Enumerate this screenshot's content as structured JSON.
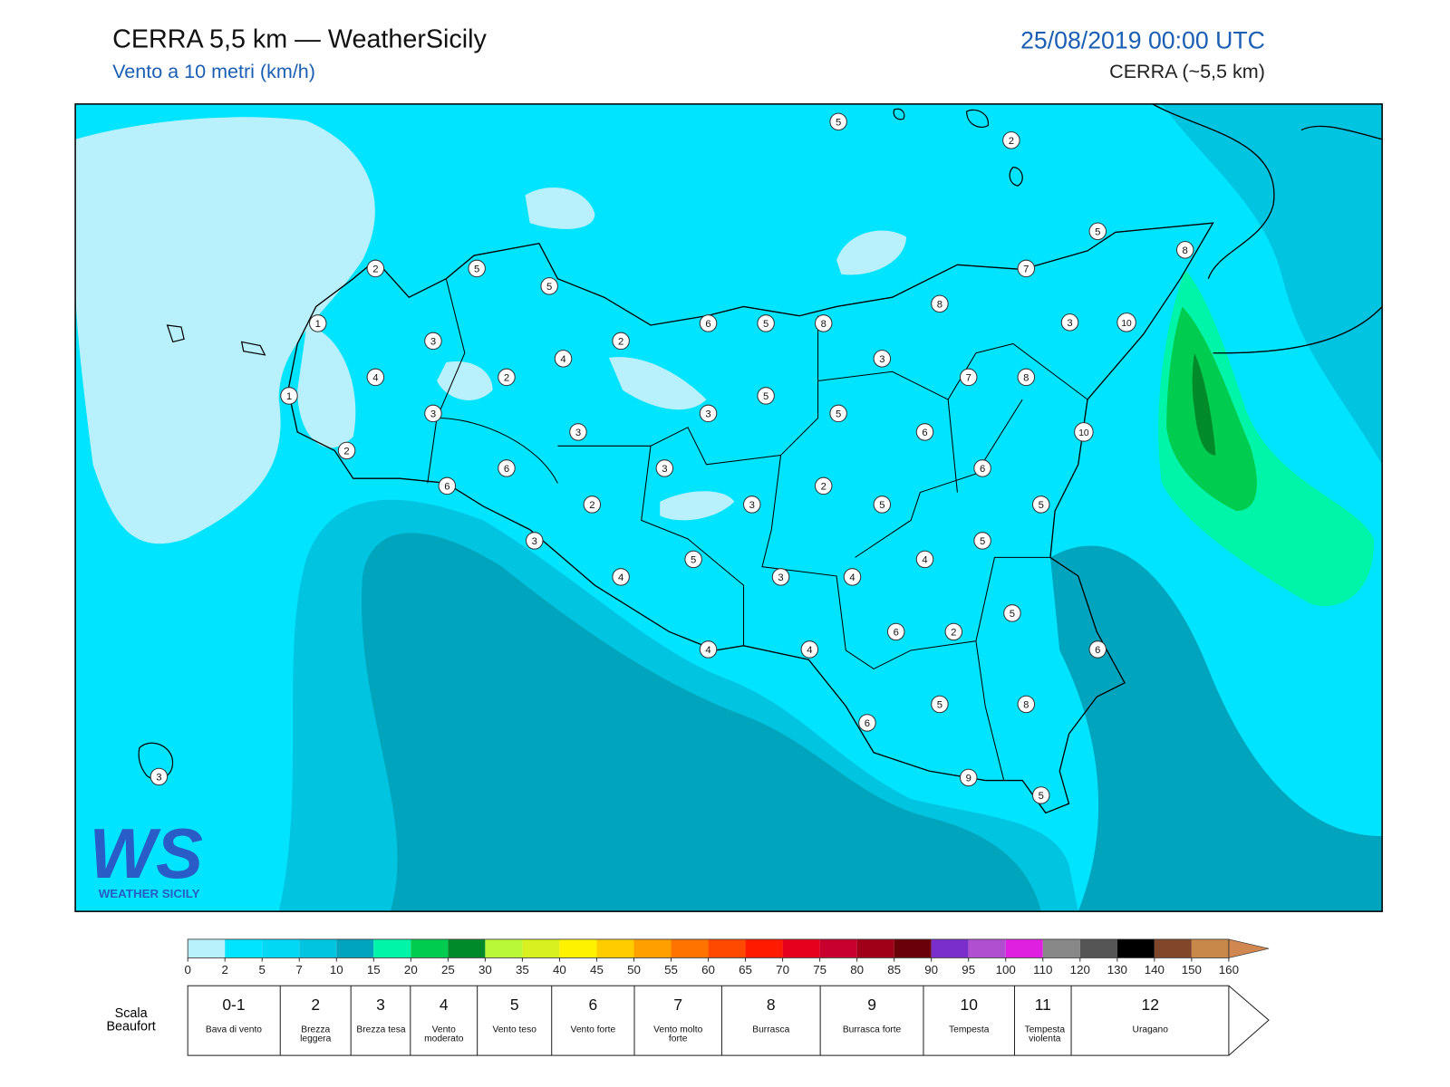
{
  "header": {
    "title": "CERRA 5,5 km — WeatherSicily",
    "subtitle": "Vento a 10 metri (km/h)",
    "datetime": "25/08/2019 00:00 UTC",
    "model": "CERRA (~5,5 km)"
  },
  "map": {
    "stations": [
      5,
      2,
      5,
      8,
      2,
      5,
      5,
      7,
      8,
      1,
      6,
      5,
      8,
      3,
      10,
      3,
      2,
      4,
      3,
      4,
      2,
      7,
      8,
      1,
      5,
      3,
      3,
      5,
      3,
      6,
      10,
      2,
      6,
      3,
      6,
      6,
      2,
      2,
      3,
      5,
      5,
      3,
      5,
      5,
      4,
      4,
      3,
      4,
      5,
      6,
      2,
      4,
      4,
      6,
      5,
      8,
      6,
      3,
      9,
      5
    ]
  },
  "legend": {
    "ticks": [
      0,
      2,
      5,
      7,
      10,
      15,
      20,
      25,
      30,
      35,
      40,
      45,
      50,
      55,
      60,
      65,
      70,
      75,
      80,
      85,
      90,
      95,
      100,
      110,
      120,
      130,
      140,
      150,
      160
    ],
    "colors": [
      "#b8f0fb",
      "#00e4ff",
      "#00d8f4",
      "#00c4e0",
      "#00a4bc",
      "#00f5a8",
      "#00cc50",
      "#008a2a",
      "#b8f838",
      "#d8f020",
      "#fff200",
      "#ffcc00",
      "#ffa000",
      "#ff7400",
      "#ff4800",
      "#ff1a00",
      "#e6001e",
      "#c80030",
      "#a00018",
      "#6a0008",
      "#7a2ecc",
      "#b050d0",
      "#e020e0",
      "#888888",
      "#555555",
      "#000000",
      "#80472a",
      "#c8884a"
    ],
    "overflow_color": "#d08850"
  },
  "beaufort": {
    "title": "Scala Beaufort",
    "levels": [
      {
        "force": "0-1",
        "label": "Bava di vento"
      },
      {
        "force": "2",
        "label": "Brezza leggera"
      },
      {
        "force": "3",
        "label": "Brezza tesa"
      },
      {
        "force": "4",
        "label": "Vento moderato"
      },
      {
        "force": "5",
        "label": "Vento teso"
      },
      {
        "force": "6",
        "label": "Vento forte"
      },
      {
        "force": "7",
        "label": "Vento molto forte"
      },
      {
        "force": "8",
        "label": "Burrasca"
      },
      {
        "force": "9",
        "label": "Burrasca forte"
      },
      {
        "force": "10",
        "label": "Tempesta"
      },
      {
        "force": "11",
        "label": "Tempesta violenta"
      },
      {
        "force": "12",
        "label": "Uragano"
      }
    ]
  },
  "logo": {
    "mark": "WS",
    "text": "WEATHER SICILY"
  }
}
